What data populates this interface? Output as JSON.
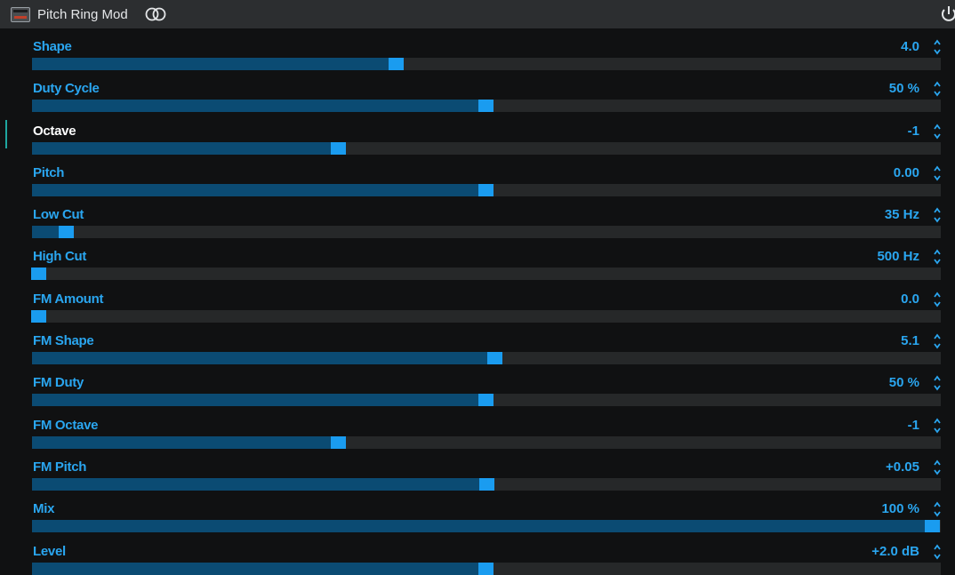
{
  "header": {
    "title": "Pitch Ring Mod"
  },
  "params": [
    {
      "label": "Shape",
      "value": "4.0",
      "position": 0.4
    },
    {
      "label": "Duty Cycle",
      "value": "50 %",
      "position": 0.5
    },
    {
      "label": "Octave",
      "value": "-1",
      "position": 0.335,
      "selected": true
    },
    {
      "label": "Pitch",
      "value": "0.00",
      "position": 0.5
    },
    {
      "label": "Low Cut",
      "value": "35 Hz",
      "position": 0.031
    },
    {
      "label": "High Cut",
      "value": "500 Hz",
      "position": 0.0
    },
    {
      "label": "FM Amount",
      "value": "0.0",
      "position": 0.0
    },
    {
      "label": "FM Shape",
      "value": "5.1",
      "position": 0.51
    },
    {
      "label": "FM Duty",
      "value": "50 %",
      "position": 0.5
    },
    {
      "label": "FM Octave",
      "value": "-1",
      "position": 0.335
    },
    {
      "label": "FM Pitch",
      "value": "+0.05",
      "position": 0.501
    },
    {
      "label": "Mix",
      "value": "100 %",
      "position": 1.0
    },
    {
      "label": "Level",
      "value": "+2.0 dB",
      "position": 0.5
    }
  ],
  "colors": {
    "label": "#2aa6f0",
    "selected_label": "#ffffff",
    "fill": "#0b4b73",
    "thumb": "#1a9cf0",
    "track": "#262829"
  }
}
